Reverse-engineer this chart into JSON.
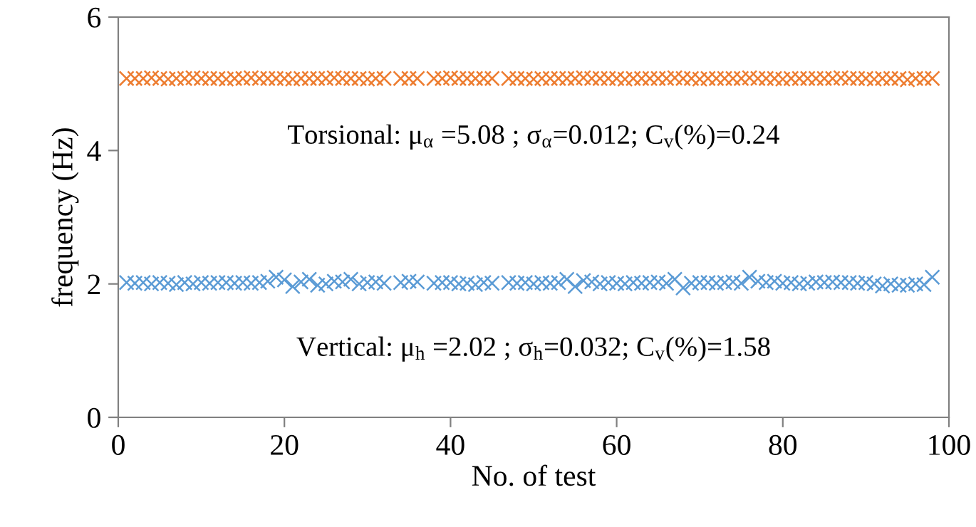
{
  "chart_data": {
    "type": "scatter",
    "xlabel": "No. of test",
    "ylabel": "frequency (Hz)",
    "xlim": [
      0,
      100
    ],
    "xticks": [
      0,
      20,
      40,
      60,
      80,
      100
    ],
    "ylim": [
      0,
      6
    ],
    "yticks": [
      0,
      2,
      4,
      6
    ],
    "marker": "cross",
    "grid": false,
    "legend": false,
    "annotations": [
      "Torsional: μ$_{α}$ =5.08 ; σ$_{α}$=0.012; C$_{v}$(%)=0.24",
      "Vertical: μ$_{h}$ =2.02 ; σ$_{h}$=0.032; C$_{v}$(%)=1.58"
    ],
    "series": [
      {
        "color": "#ed7d31",
        "x": [
          1,
          2,
          3,
          4,
          5,
          6,
          7,
          8,
          9,
          10,
          11,
          12,
          13,
          14,
          15,
          16,
          17,
          18,
          19,
          20,
          21,
          22,
          23,
          24,
          25,
          26,
          27,
          28,
          29,
          30,
          31,
          32,
          34,
          35,
          36,
          38,
          39,
          40,
          41,
          42,
          43,
          44,
          45,
          47,
          48,
          49,
          50,
          51,
          52,
          53,
          54,
          55,
          56,
          57,
          58,
          59,
          60,
          61,
          62,
          63,
          64,
          65,
          66,
          67,
          68,
          69,
          70,
          71,
          72,
          73,
          74,
          75,
          76,
          77,
          78,
          79,
          80,
          81,
          82,
          83,
          84,
          85,
          86,
          87,
          88,
          89,
          90,
          91,
          92,
          93,
          94,
          95,
          96,
          97,
          98
        ],
        "values": [
          5.08,
          5.08,
          5.08,
          5.09,
          5.08,
          5.07,
          5.08,
          5.08,
          5.09,
          5.08,
          5.08,
          5.08,
          5.07,
          5.08,
          5.08,
          5.09,
          5.08,
          5.08,
          5.08,
          5.08,
          5.07,
          5.08,
          5.08,
          5.08,
          5.08,
          5.09,
          5.08,
          5.08,
          5.08,
          5.07,
          5.08,
          5.08,
          5.08,
          5.08,
          5.08,
          5.08,
          5.08,
          5.09,
          5.08,
          5.08,
          5.08,
          5.08,
          5.08,
          5.08,
          5.08,
          5.08,
          5.07,
          5.08,
          5.08,
          5.08,
          5.08,
          5.08,
          5.09,
          5.08,
          5.08,
          5.08,
          5.08,
          5.07,
          5.08,
          5.08,
          5.08,
          5.08,
          5.08,
          5.09,
          5.08,
          5.08,
          5.07,
          5.08,
          5.08,
          5.08,
          5.08,
          5.08,
          5.09,
          5.08,
          5.08,
          5.08,
          5.07,
          5.08,
          5.08,
          5.08,
          5.08,
          5.08,
          5.08,
          5.09,
          5.08,
          5.08,
          5.08,
          5.07,
          5.08,
          5.08,
          5.08,
          5.06,
          5.08,
          5.08,
          5.08
        ]
      },
      {
        "color": "#5b9bd5",
        "x": [
          1,
          2,
          3,
          4,
          5,
          6,
          7,
          8,
          9,
          10,
          11,
          12,
          13,
          14,
          15,
          16,
          17,
          18,
          19,
          20,
          21,
          22,
          23,
          24,
          25,
          26,
          27,
          28,
          29,
          30,
          31,
          32,
          34,
          35,
          36,
          38,
          39,
          40,
          41,
          42,
          43,
          44,
          45,
          47,
          48,
          49,
          50,
          51,
          52,
          53,
          54,
          55,
          56,
          57,
          58,
          59,
          60,
          61,
          62,
          63,
          64,
          65,
          66,
          67,
          68,
          69,
          70,
          71,
          72,
          73,
          74,
          75,
          76,
          77,
          78,
          79,
          80,
          81,
          82,
          83,
          84,
          85,
          86,
          87,
          88,
          89,
          90,
          91,
          92,
          93,
          94,
          95,
          96,
          97,
          98
        ],
        "values": [
          2.02,
          2.01,
          2.02,
          2.0,
          2.02,
          2.01,
          1.99,
          2.02,
          2.0,
          2.02,
          2.01,
          2.02,
          2.02,
          2.01,
          2.02,
          2.01,
          2.02,
          2.04,
          2.1,
          2.06,
          1.96,
          2.03,
          2.07,
          1.98,
          2.0,
          2.04,
          2.03,
          2.07,
          2.0,
          2.02,
          2.03,
          2.01,
          2.02,
          2.04,
          2.03,
          2.01,
          2.02,
          2.02,
          2.0,
          2.01,
          1.99,
          2.02,
          2.01,
          2.02,
          2.01,
          2.02,
          2.0,
          2.02,
          2.01,
          2.02,
          2.07,
          1.96,
          2.05,
          2.03,
          2.0,
          2.02,
          2.01,
          2.0,
          2.02,
          2.01,
          2.02,
          2.03,
          2.01,
          2.07,
          1.94,
          2.01,
          2.02,
          2.02,
          2.01,
          2.02,
          2.03,
          2.01,
          2.1,
          2.04,
          2.02,
          2.04,
          2.01,
          2.02,
          2.0,
          2.01,
          2.03,
          2.02,
          2.03,
          2.02,
          2.02,
          2.01,
          2.02,
          2.0,
          1.97,
          2.0,
          1.98,
          1.98,
          2.0,
          1.99,
          2.1
        ]
      }
    ]
  }
}
